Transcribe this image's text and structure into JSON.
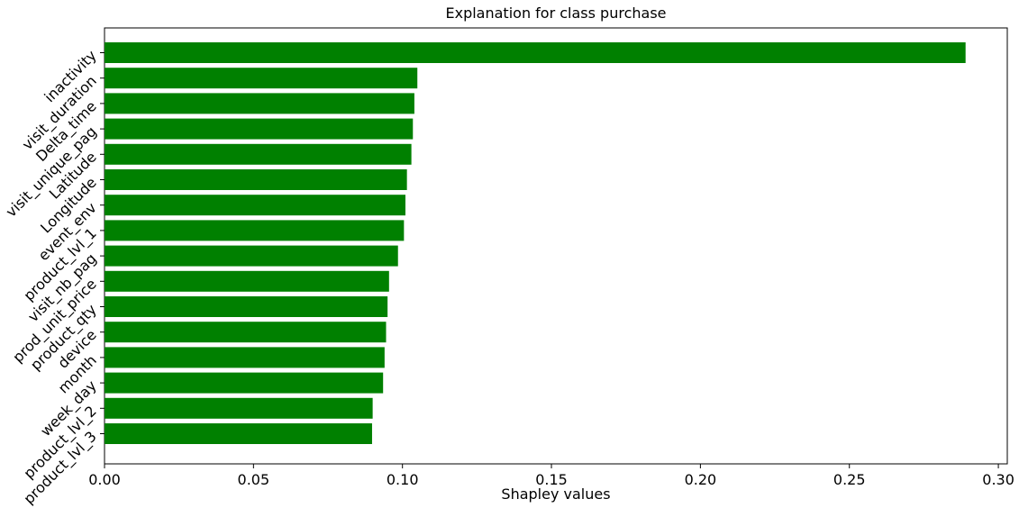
{
  "chart_data": {
    "type": "bar",
    "orientation": "horizontal",
    "title": "Explanation for class purchase",
    "xlabel": "Shapley values",
    "ylabel": "",
    "xlim": [
      0.0,
      0.303
    ],
    "xticks": [
      0.0,
      0.05,
      0.1,
      0.15,
      0.2,
      0.25,
      0.3
    ],
    "xtick_labels": [
      "0.00",
      "0.05",
      "0.10",
      "0.15",
      "0.20",
      "0.25",
      "0.30"
    ],
    "bar_color": "#008000",
    "grid": false,
    "categories": [
      "inactivity",
      "visit_duration",
      "Delta_time",
      "visit_unique_pag",
      "Latitude",
      "Longitude",
      "event_env",
      "product_lvl_1",
      "visit_nb_pag",
      "prod_unit_price",
      "product_qty",
      "device",
      "month",
      "week_day",
      "product_lvl_2",
      "product_lvl_3"
    ],
    "values": [
      0.289,
      0.105,
      0.104,
      0.1035,
      0.103,
      0.1015,
      0.101,
      0.1005,
      0.0985,
      0.0955,
      0.095,
      0.0945,
      0.094,
      0.0935,
      0.09,
      0.0898
    ]
  }
}
